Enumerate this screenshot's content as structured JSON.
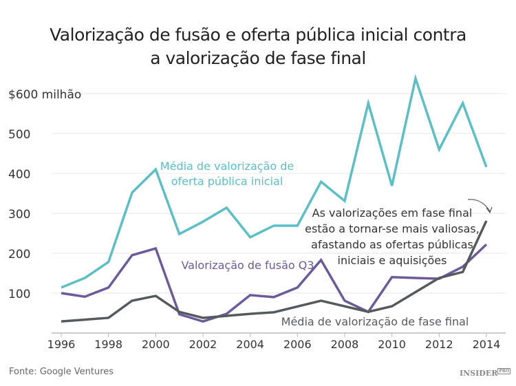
{
  "chart_data": {
    "type": "line",
    "title": "Valorização de fusão e oferta pública inicial contra a valorização de fase final",
    "title_lines": [
      "Valorização de fusão e oferta pública inicial contra",
      "a valorização de fase final"
    ],
    "ylim": [
      0,
      650
    ],
    "yticks": [
      100,
      200,
      300,
      400,
      500,
      600
    ],
    "ytick_labels": [
      "100",
      "200",
      "300",
      "400",
      "500",
      "$600 milhão"
    ],
    "xticks": [
      1996,
      1998,
      2000,
      2002,
      2004,
      2006,
      2008,
      2010,
      2012,
      2014
    ],
    "grid": "horizontal",
    "series": [
      {
        "name": "Média de valorização de oferta pública inicial",
        "color": "#5bbfc6",
        "x": [
          1996,
          1997,
          1998,
          1999,
          2000,
          2001,
          2002,
          2003,
          2004,
          2005,
          2006,
          2007,
          2008,
          2009,
          2010,
          2011,
          2012,
          2013,
          2014
        ],
        "values": [
          114,
          138,
          178,
          352,
          410,
          248,
          279,
          314,
          240,
          269,
          269,
          379,
          331,
          576,
          369,
          638,
          460,
          576,
          416
        ]
      },
      {
        "name": "Valorização de fusão Q3",
        "color": "#6b5b9a",
        "x": [
          1996,
          1997,
          1998,
          1999,
          2000,
          2001,
          2002,
          2003,
          2004,
          2005,
          2006,
          2007,
          2008,
          2009,
          2010,
          2011,
          2012,
          2013,
          2014
        ],
        "values": [
          100,
          91,
          114,
          195,
          212,
          47,
          29,
          48,
          95,
          90,
          114,
          183,
          81,
          53,
          140,
          138,
          136,
          166,
          222
        ]
      },
      {
        "name": "Média de valorização de fase final",
        "color": "#555a5c",
        "x": [
          1996,
          1998,
          1999,
          2000,
          2001,
          2002,
          2004,
          2005,
          2007,
          2009,
          2010,
          2012,
          2013,
          2014
        ],
        "values": [
          29,
          38,
          81,
          93,
          53,
          38,
          48,
          52,
          81,
          53,
          67,
          138,
          153,
          281
        ]
      }
    ],
    "annotation": [
      "As valorizações em fase final",
      "estão a tornar-se mais valiosas,",
      "afastando as ofertas públicas",
      "iniciais e aquisições"
    ]
  },
  "labels": {
    "ipo": [
      "Média de valorização de",
      "oferta pública inicial"
    ],
    "ma": "Valorização de fusão Q3",
    "late": "Média de valorização de fase final"
  },
  "source": "Fonte: Google Ventures",
  "logo": "INSIDER PRO"
}
